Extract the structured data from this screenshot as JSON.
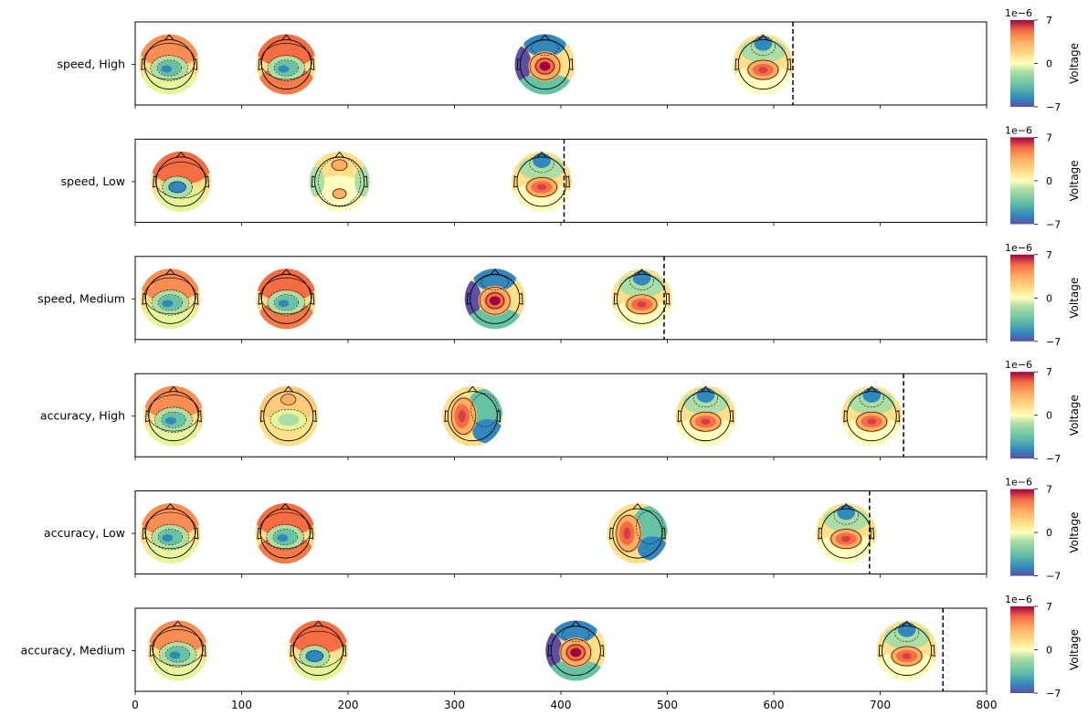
{
  "chart_data": {
    "type": "topomap-timeline",
    "xlim": [
      0,
      800
    ],
    "x_ticks": [
      0,
      100,
      200,
      300,
      400,
      500,
      600,
      700,
      800
    ],
    "colorbar": {
      "label": "Voltage",
      "exponent": "1e−6",
      "ticks": [
        {
          "value": 7,
          "label": "7"
        },
        {
          "value": 0,
          "label": "0"
        },
        {
          "value": -7,
          "label": "−7"
        }
      ],
      "range": [
        -7,
        7
      ],
      "colormap": "Spectral_r"
    },
    "rows": [
      {
        "label": "speed, High",
        "rt_line": 618,
        "topomaps": [
          {
            "x": 32,
            "pattern": "central-negative"
          },
          {
            "x": 142,
            "pattern": "central-negative-warm"
          },
          {
            "x": 385,
            "pattern": "central-positive"
          },
          {
            "x": 590,
            "pattern": "frontal-negative"
          }
        ]
      },
      {
        "label": "speed, Low",
        "rt_line": 403,
        "topomaps": [
          {
            "x": 43,
            "pattern": "left-negative"
          },
          {
            "x": 192,
            "pattern": "dipolar"
          },
          {
            "x": 382,
            "pattern": "frontal-negative"
          }
        ]
      },
      {
        "label": "speed, Medium",
        "rt_line": 497,
        "topomaps": [
          {
            "x": 33,
            "pattern": "central-negative"
          },
          {
            "x": 142,
            "pattern": "central-negative-warm"
          },
          {
            "x": 338,
            "pattern": "central-positive"
          },
          {
            "x": 476,
            "pattern": "frontal-negative"
          }
        ]
      },
      {
        "label": "accuracy, High",
        "rt_line": 722,
        "topomaps": [
          {
            "x": 36,
            "pattern": "central-negative"
          },
          {
            "x": 144,
            "pattern": "weak-negative"
          },
          {
            "x": 317,
            "pattern": "left-positive"
          },
          {
            "x": 536,
            "pattern": "frontal-negative"
          },
          {
            "x": 692,
            "pattern": "frontal-negative"
          }
        ]
      },
      {
        "label": "accuracy, Low",
        "rt_line": 690,
        "topomaps": [
          {
            "x": 33,
            "pattern": "central-negative"
          },
          {
            "x": 141,
            "pattern": "central-negative-warm"
          },
          {
            "x": 472,
            "pattern": "left-positive"
          },
          {
            "x": 668,
            "pattern": "frontal-negative"
          }
        ]
      },
      {
        "label": "accuracy, Medium",
        "rt_line": 759,
        "topomaps": [
          {
            "x": 40,
            "pattern": "central-negative"
          },
          {
            "x": 172,
            "pattern": "left-negative"
          },
          {
            "x": 414,
            "pattern": "central-positive"
          },
          {
            "x": 725,
            "pattern": "frontal-negative"
          }
        ]
      }
    ]
  }
}
